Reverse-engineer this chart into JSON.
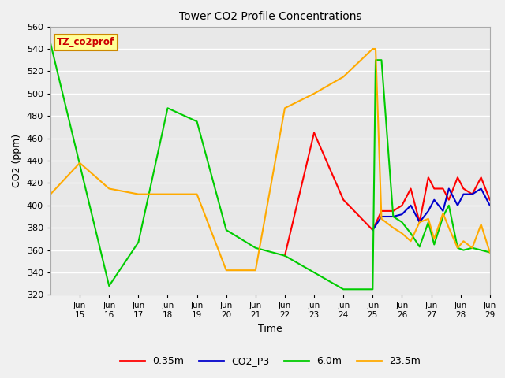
{
  "title": "Tower CO2 Profile Concentrations",
  "xlabel": "Time",
  "ylabel": "CO2 (ppm)",
  "ylim": [
    320,
    560
  ],
  "yticks": [
    320,
    340,
    360,
    380,
    400,
    420,
    440,
    460,
    480,
    500,
    520,
    540,
    560
  ],
  "background_color": "#e8e8e8",
  "grid_color": "#ffffff",
  "legend_label": "TZ_co2prof",
  "legend_box_color": "#ffff99",
  "legend_text_color": "#cc0000",
  "xlim": [
    14.0,
    29.0
  ],
  "series": {
    "0.35m": {
      "color": "#ff0000",
      "x": [
        22.0,
        23.0,
        24.0,
        25.0,
        25.3,
        25.7,
        26.0,
        26.3,
        26.6,
        26.9,
        27.1,
        27.4,
        27.6,
        27.9,
        28.1,
        28.4,
        28.7,
        29.0
      ],
      "y": [
        355,
        465,
        405,
        378,
        395,
        395,
        400,
        415,
        385,
        425,
        415,
        415,
        405,
        425,
        415,
        410,
        425,
        405
      ]
    },
    "CO2_P3": {
      "color": "#0000cc",
      "x": [
        25.0,
        25.3,
        25.7,
        26.0,
        26.3,
        26.6,
        26.9,
        27.1,
        27.4,
        27.6,
        27.9,
        28.1,
        28.4,
        28.7,
        29.0
      ],
      "y": [
        378,
        390,
        390,
        392,
        400,
        385,
        395,
        405,
        395,
        415,
        400,
        410,
        410,
        415,
        400
      ]
    },
    "6.0m": {
      "color": "#00cc00",
      "x": [
        14.0,
        16.0,
        17.0,
        18.0,
        19.0,
        20.0,
        21.0,
        22.0,
        23.0,
        24.0,
        25.0,
        25.1,
        25.3,
        25.7,
        26.0,
        26.3,
        26.6,
        26.9,
        27.1,
        27.4,
        27.6,
        27.9,
        28.1,
        28.4,
        28.7,
        29.0
      ],
      "y": [
        545,
        328,
        367,
        487,
        475,
        378,
        362,
        355,
        340,
        325,
        325,
        530,
        530,
        390,
        385,
        375,
        363,
        385,
        365,
        390,
        400,
        362,
        360,
        362,
        360,
        358
      ]
    },
    "23.5m": {
      "color": "#ffaa00",
      "x": [
        14.0,
        15.0,
        16.0,
        17.0,
        18.0,
        19.0,
        20.0,
        21.0,
        22.0,
        23.0,
        24.0,
        25.0,
        25.1,
        25.3,
        25.7,
        26.0,
        26.3,
        26.6,
        26.9,
        27.1,
        27.4,
        27.6,
        27.9,
        28.1,
        28.4,
        28.7,
        29.0
      ],
      "y": [
        410,
        438,
        415,
        410,
        410,
        410,
        342,
        342,
        487,
        500,
        515,
        540,
        540,
        388,
        380,
        375,
        368,
        385,
        388,
        370,
        393,
        380,
        362,
        368,
        362,
        383,
        358
      ]
    }
  },
  "xtick_positions": [
    15,
    16,
    17,
    18,
    19,
    20,
    21,
    22,
    23,
    24,
    25,
    26,
    27,
    28,
    29
  ],
  "xtick_labels": [
    "15",
    "16",
    "17",
    "18",
    "19",
    "20",
    "21",
    "22",
    "23",
    "24 Jun",
    "25",
    "26",
    "27",
    "28",
    "29"
  ]
}
